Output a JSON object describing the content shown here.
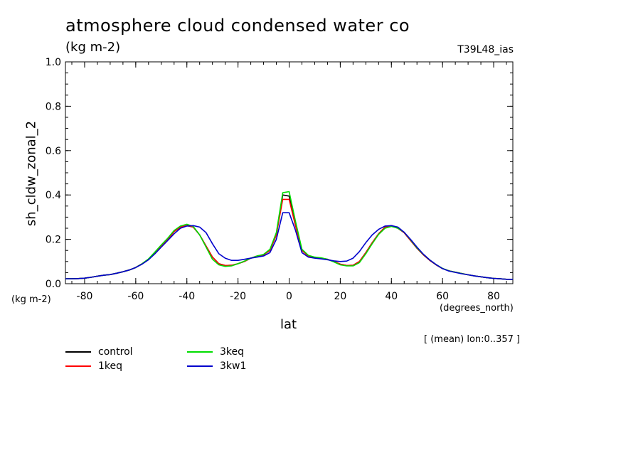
{
  "chart_data": {
    "type": "line",
    "title": "atmosphere cloud condensed water co",
    "subtitle": "(kg m-2)",
    "model_label": "T39L48_ias",
    "xlabel": "lat",
    "ylabel": "sh_cldw_zonal_2",
    "x_units": "(degrees_north)",
    "y_units": "(kg m-2)",
    "note": "[ (mean) lon:0..357 ]",
    "xlim": [
      -87.5,
      87.5
    ],
    "ylim": [
      0.0,
      1.0
    ],
    "x_ticks": [
      -80,
      -60,
      -40,
      -20,
      0,
      20,
      40,
      60,
      80
    ],
    "x_tick_labels": [
      "-80",
      "-60",
      "-40",
      "-20",
      "0",
      "20",
      "40",
      "60",
      "80"
    ],
    "y_ticks": [
      0.0,
      0.2,
      0.4,
      0.6,
      0.8,
      1.0
    ],
    "y_tick_labels": [
      "0.0",
      "0.2",
      "0.4",
      "0.6",
      "0.8",
      "1.0"
    ],
    "grid": false,
    "legend_position": "below",
    "x": [
      -87.5,
      -85,
      -82.5,
      -80,
      -77.5,
      -75,
      -72.5,
      -70,
      -67.5,
      -65,
      -62.5,
      -60,
      -57.5,
      -55,
      -52.5,
      -50,
      -47.5,
      -45,
      -42.5,
      -40,
      -37.5,
      -35,
      -32.5,
      -30,
      -27.5,
      -25,
      -22.5,
      -20,
      -17.5,
      -15,
      -12.5,
      -10,
      -7.5,
      -5,
      -2.5,
      0,
      2.5,
      5,
      7.5,
      10,
      12.5,
      15,
      17.5,
      20,
      22.5,
      25,
      27.5,
      30,
      32.5,
      35,
      37.5,
      40,
      42.5,
      45,
      47.5,
      50,
      52.5,
      55,
      57.5,
      60,
      62.5,
      65,
      67.5,
      70,
      72.5,
      75,
      77.5,
      80,
      82.5,
      85,
      87.5
    ],
    "series": [
      {
        "name": "control",
        "color": "#000000",
        "values": [
          0.022,
          0.022,
          0.023,
          0.025,
          0.029,
          0.034,
          0.038,
          0.041,
          0.047,
          0.054,
          0.062,
          0.073,
          0.09,
          0.11,
          0.14,
          0.17,
          0.2,
          0.235,
          0.255,
          0.262,
          0.255,
          0.22,
          0.17,
          0.12,
          0.09,
          0.082,
          0.083,
          0.09,
          0.1,
          0.115,
          0.125,
          0.13,
          0.15,
          0.22,
          0.4,
          0.395,
          0.27,
          0.15,
          0.125,
          0.118,
          0.115,
          0.11,
          0.1,
          0.088,
          0.082,
          0.083,
          0.1,
          0.14,
          0.185,
          0.225,
          0.255,
          0.262,
          0.25,
          0.23,
          0.195,
          0.16,
          0.13,
          0.105,
          0.085,
          0.068,
          0.058,
          0.052,
          0.046,
          0.04,
          0.035,
          0.031,
          0.027,
          0.024,
          0.022,
          0.02,
          0.02
        ]
      },
      {
        "name": "1keq",
        "color": "#ff0000",
        "values": [
          0.022,
          0.022,
          0.023,
          0.025,
          0.029,
          0.034,
          0.038,
          0.041,
          0.047,
          0.054,
          0.062,
          0.073,
          0.09,
          0.11,
          0.14,
          0.17,
          0.2,
          0.235,
          0.255,
          0.262,
          0.255,
          0.22,
          0.17,
          0.12,
          0.09,
          0.082,
          0.083,
          0.09,
          0.1,
          0.115,
          0.125,
          0.13,
          0.15,
          0.22,
          0.38,
          0.38,
          0.26,
          0.15,
          0.125,
          0.118,
          0.115,
          0.11,
          0.1,
          0.088,
          0.082,
          0.083,
          0.1,
          0.14,
          0.185,
          0.225,
          0.255,
          0.262,
          0.25,
          0.23,
          0.195,
          0.16,
          0.13,
          0.105,
          0.085,
          0.068,
          0.058,
          0.052,
          0.046,
          0.04,
          0.035,
          0.031,
          0.027,
          0.024,
          0.022,
          0.02,
          0.02
        ]
      },
      {
        "name": "3keq",
        "color": "#00dd00",
        "values": [
          0.022,
          0.022,
          0.023,
          0.025,
          0.029,
          0.034,
          0.038,
          0.041,
          0.047,
          0.054,
          0.062,
          0.073,
          0.09,
          0.112,
          0.143,
          0.175,
          0.205,
          0.24,
          0.26,
          0.268,
          0.258,
          0.22,
          0.165,
          0.11,
          0.085,
          0.078,
          0.08,
          0.09,
          0.102,
          0.115,
          0.125,
          0.132,
          0.155,
          0.23,
          0.41,
          0.415,
          0.28,
          0.155,
          0.128,
          0.12,
          0.117,
          0.11,
          0.098,
          0.085,
          0.08,
          0.08,
          0.095,
          0.135,
          0.18,
          0.222,
          0.25,
          0.258,
          0.25,
          0.232,
          0.198,
          0.162,
          0.132,
          0.107,
          0.086,
          0.069,
          0.058,
          0.052,
          0.046,
          0.04,
          0.035,
          0.031,
          0.027,
          0.024,
          0.022,
          0.02,
          0.02
        ]
      },
      {
        "name": "3kw1",
        "color": "#0000cc",
        "values": [
          0.022,
          0.022,
          0.023,
          0.025,
          0.029,
          0.034,
          0.038,
          0.041,
          0.047,
          0.054,
          0.062,
          0.073,
          0.088,
          0.108,
          0.135,
          0.165,
          0.195,
          0.225,
          0.25,
          0.26,
          0.262,
          0.255,
          0.23,
          0.18,
          0.135,
          0.115,
          0.105,
          0.105,
          0.11,
          0.115,
          0.12,
          0.125,
          0.14,
          0.2,
          0.32,
          0.32,
          0.24,
          0.14,
          0.12,
          0.115,
          0.112,
          0.108,
          0.103,
          0.1,
          0.102,
          0.115,
          0.145,
          0.185,
          0.22,
          0.245,
          0.26,
          0.262,
          0.255,
          0.232,
          0.2,
          0.165,
          0.133,
          0.107,
          0.086,
          0.068,
          0.057,
          0.051,
          0.045,
          0.04,
          0.035,
          0.031,
          0.027,
          0.024,
          0.022,
          0.02,
          0.02
        ]
      }
    ]
  }
}
